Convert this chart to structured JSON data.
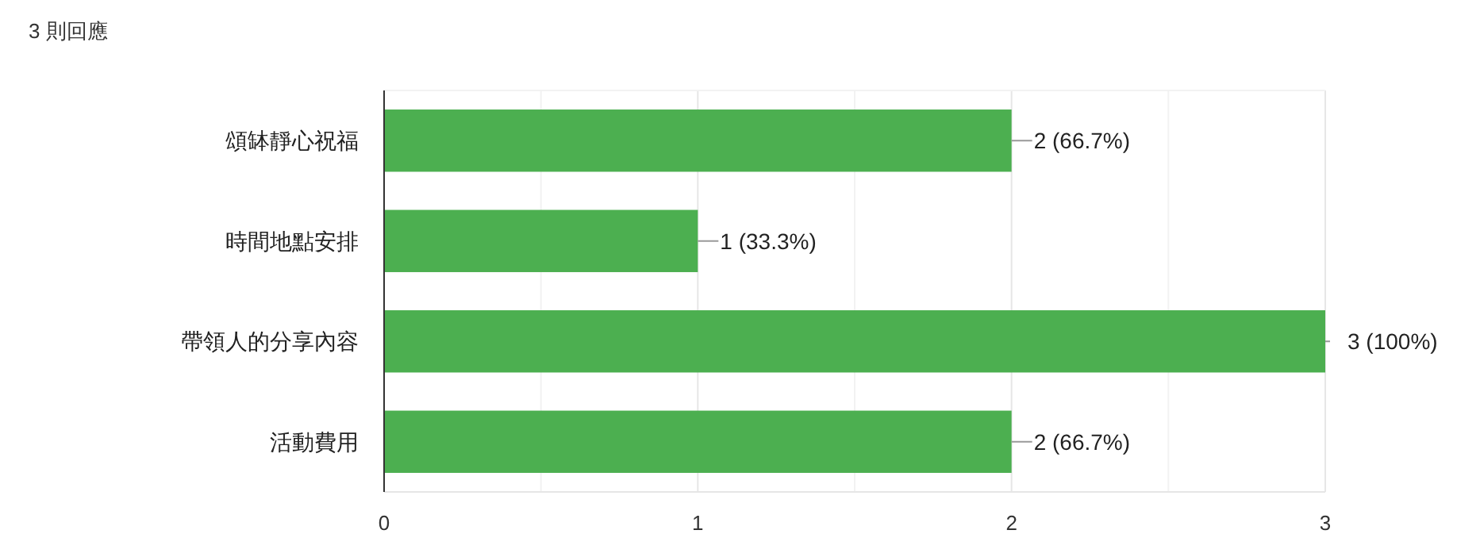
{
  "chart_data": {
    "type": "bar",
    "orientation": "horizontal",
    "title": "3 則回應",
    "categories": [
      "頌缽靜心祝福",
      "時間地點安排",
      "帶領人的分享內容",
      "活動費用"
    ],
    "values": [
      2,
      1,
      3,
      2
    ],
    "value_labels": [
      "2 (66.7%)",
      "1 (33.3%)",
      "3 (100%)",
      "2 (66.7%)"
    ],
    "color": "#4caf50",
    "xlim": [
      0,
      3
    ],
    "xticks": [
      0,
      {
        "value": 0.5,
        "label": null
      },
      1,
      {
        "value": 1.5,
        "label": null
      },
      2,
      {
        "value": 2.5,
        "label": null
      },
      3
    ],
    "grid": "x"
  }
}
